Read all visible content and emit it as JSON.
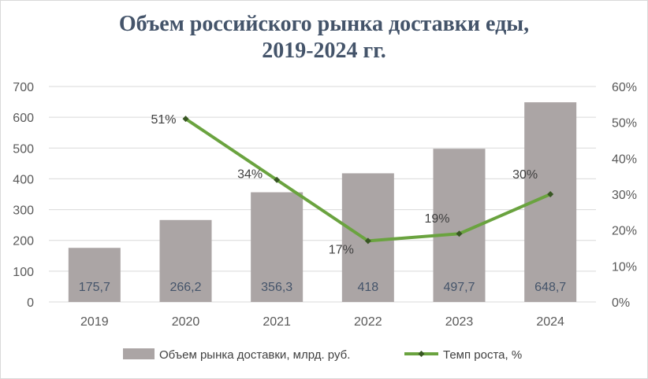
{
  "chart_data": {
    "type": "bar",
    "title_line1": "Объем российского рынка доставки еды,",
    "title_line2": "2019-2024 гг.",
    "categories": [
      "2019",
      "2020",
      "2021",
      "2022",
      "2023",
      "2024"
    ],
    "series": [
      {
        "name": "Объем рынка доставки, млрд. руб.",
        "kind": "bar",
        "axis": "left",
        "values": [
          175.7,
          266.2,
          356.3,
          418,
          497.7,
          648.7
        ],
        "labels": [
          "175,7",
          "266,2",
          "356,3",
          "418",
          "497,7",
          "648,7"
        ],
        "color": "#aba5a5"
      },
      {
        "name": "Темп роста, %",
        "kind": "line",
        "axis": "right",
        "values": [
          null,
          51,
          34,
          17,
          19,
          30
        ],
        "labels": [
          "",
          "51%",
          "34%",
          "17%",
          "19%",
          "30%"
        ],
        "color": "#6aa33f",
        "marker_color": "#385723"
      }
    ],
    "y_left": {
      "min": 0,
      "max": 700,
      "ticks": [
        "0",
        "100",
        "200",
        "300",
        "400",
        "500",
        "600",
        "700"
      ]
    },
    "y_right": {
      "min": 0,
      "max": 60,
      "ticks": [
        "0%",
        "10%",
        "20%",
        "30%",
        "40%",
        "50%",
        "60%"
      ]
    },
    "grid": true,
    "legend": "bottom"
  }
}
